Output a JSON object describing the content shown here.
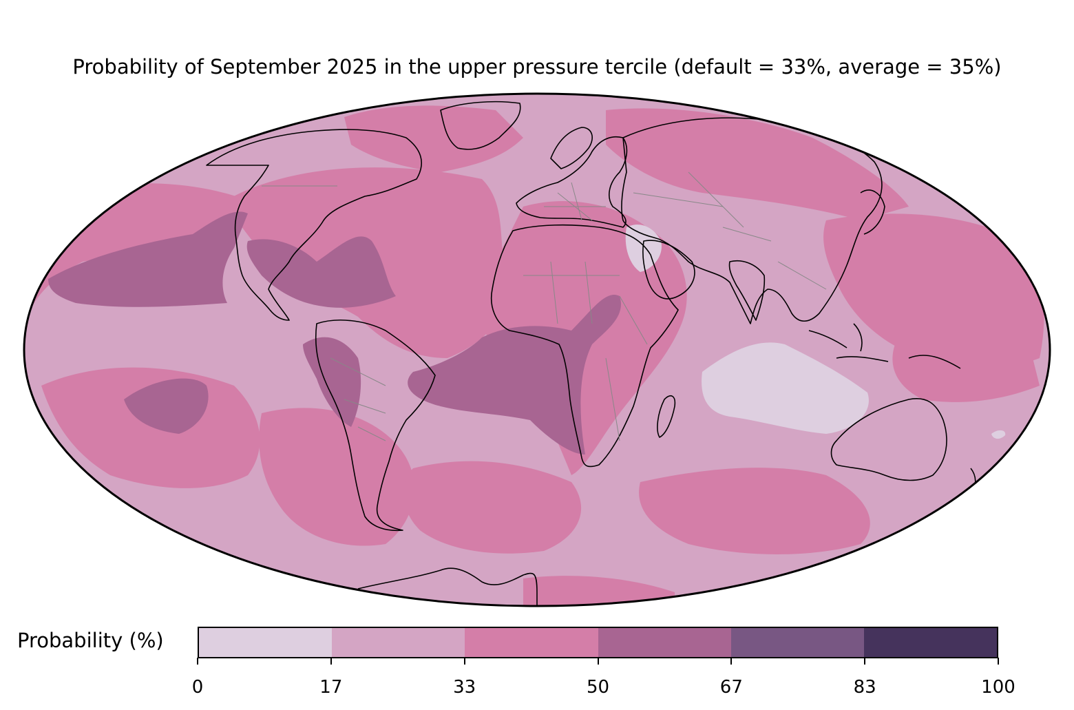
{
  "title": "Probability of September 2025 in the upper pressure tercile (default = 33%, average = 35%)",
  "colorbar": {
    "label": "Probability (%)",
    "ticks": [
      "0",
      "17",
      "33",
      "50",
      "67",
      "83",
      "100"
    ],
    "segments": [
      {
        "range": "0-17",
        "color": "#decfe0"
      },
      {
        "range": "17-33",
        "color": "#d4a5c4"
      },
      {
        "range": "33-50",
        "color": "#d47ea8"
      },
      {
        "range": "50-67",
        "color": "#a86592"
      },
      {
        "range": "67-83",
        "color": "#785783"
      },
      {
        "range": "83-100",
        "color": "#45335c"
      }
    ]
  },
  "map": {
    "projection": "Mollweide",
    "base_color": "#d4a5c4",
    "coastline_color": "#000000",
    "border_color": "#888888"
  }
}
